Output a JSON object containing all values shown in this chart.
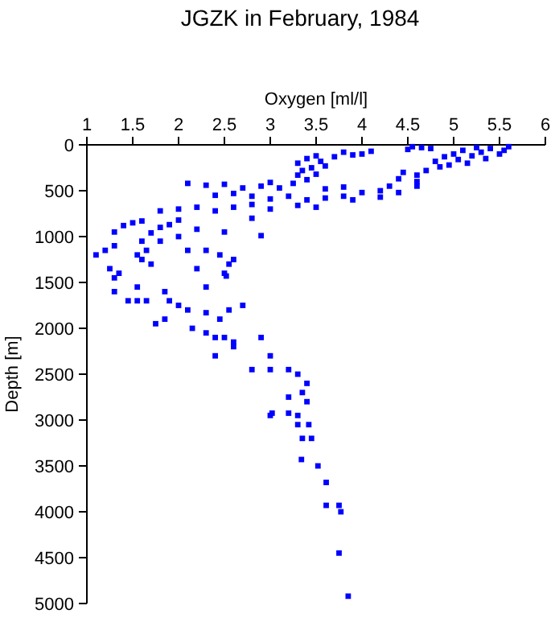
{
  "chart_data": {
    "type": "scatter",
    "title": "JGZK in February, 1984",
    "xlabel": "Oxygen [ml/l]",
    "ylabel": "Depth [m]",
    "xlim": [
      1,
      6
    ],
    "xticks": [
      1,
      1.5,
      2,
      2.5,
      3,
      3.5,
      4,
      4.5,
      5,
      5.5,
      6
    ],
    "ylim": [
      5000,
      0
    ],
    "yticks": [
      0,
      500,
      1000,
      1500,
      2000,
      2500,
      3000,
      3500,
      4000,
      4500,
      5000
    ],
    "grid": false,
    "marker": "square",
    "series": [
      {
        "color": "#0000ff",
        "x": [
          5.6,
          5.55,
          5.5,
          5.4,
          5.35,
          5.3,
          5.25,
          5.2,
          5.15,
          5.1,
          5.05,
          5.0,
          4.95,
          4.9,
          4.85,
          4.8,
          4.75,
          4.7,
          4.65,
          4.6,
          4.55,
          4.5,
          4.6,
          4.45,
          4.4,
          4.3,
          4.2,
          4.1,
          4.0,
          3.9,
          3.8,
          3.7,
          3.3,
          3.35,
          3.4,
          3.45,
          3.5,
          3.55,
          3.6,
          3.4,
          3.3,
          3.5,
          3.25,
          2.1,
          2.3,
          2.5,
          2.7,
          2.9,
          3.0,
          3.1,
          3.6,
          3.8,
          4.0,
          4.4,
          4.6,
          2.4,
          2.6,
          2.8,
          3.0,
          3.2,
          3.4,
          3.6,
          3.8,
          3.9,
          4.2,
          1.8,
          2.0,
          2.2,
          2.4,
          2.6,
          2.8,
          3.0,
          3.3,
          3.5,
          1.4,
          1.5,
          1.6,
          1.8,
          1.9,
          2.0,
          2.2,
          2.5,
          2.8,
          1.3,
          1.7,
          2.9,
          1.1,
          1.2,
          1.3,
          1.25,
          1.35,
          1.3,
          1.6,
          1.65,
          1.6,
          1.7,
          1.55,
          1.8,
          2.0,
          2.3,
          2.45,
          2.55,
          2.5,
          2.52,
          2.2,
          2.6,
          2.1,
          1.3,
          1.45,
          1.55,
          1.65,
          1.55,
          1.85,
          1.9,
          2.0,
          2.1,
          2.3,
          2.45,
          1.75,
          1.85,
          2.3,
          2.55,
          2.7,
          2.15,
          2.3,
          2.4,
          2.5,
          2.6,
          2.9,
          3.0,
          2.4,
          2.6,
          2.8,
          3.0,
          3.2,
          3.3,
          3.4,
          3.2,
          3.35,
          3.4,
          3.0,
          3.3,
          3.02,
          3.2,
          3.3,
          3.42,
          3.35,
          3.45,
          3.34,
          3.52,
          3.61,
          3.61,
          3.75,
          3.77,
          3.75,
          3.85
        ],
        "values": [
          20,
          60,
          100,
          40,
          150,
          80,
          30,
          120,
          200,
          60,
          160,
          100,
          220,
          130,
          240,
          180,
          40,
          280,
          30,
          330,
          20,
          50,
          400,
          300,
          370,
          450,
          500,
          70,
          100,
          110,
          80,
          130,
          200,
          280,
          150,
          250,
          320,
          180,
          230,
          380,
          330,
          120,
          420,
          420,
          440,
          430,
          470,
          450,
          410,
          470,
          480,
          460,
          520,
          520,
          450,
          550,
          530,
          560,
          590,
          560,
          600,
          580,
          560,
          600,
          570,
          720,
          700,
          680,
          720,
          680,
          650,
          700,
          660,
          680,
          880,
          850,
          830,
          900,
          870,
          820,
          920,
          950,
          800,
          950,
          960,
          990,
          1200,
          1150,
          1100,
          1350,
          1400,
          1450,
          1050,
          1150,
          1250,
          1300,
          1200,
          1050,
          1000,
          1150,
          1200,
          1300,
          1400,
          1430,
          1350,
          1250,
          1150,
          1600,
          1700,
          1700,
          1700,
          1550,
          1600,
          1700,
          1750,
          1800,
          1550,
          1900,
          1950,
          1900,
          1830,
          1800,
          1750,
          2000,
          2050,
          2100,
          2100,
          2200,
          2100,
          2300,
          2300,
          2150,
          2450,
          2450,
          2450,
          2500,
          2600,
          2750,
          2700,
          2800,
          2950,
          2950,
          2925,
          2925,
          3050,
          3050,
          3200,
          3200,
          3430,
          3500,
          3680,
          3930,
          3930,
          4000,
          4450,
          4920
        ]
      }
    ]
  }
}
